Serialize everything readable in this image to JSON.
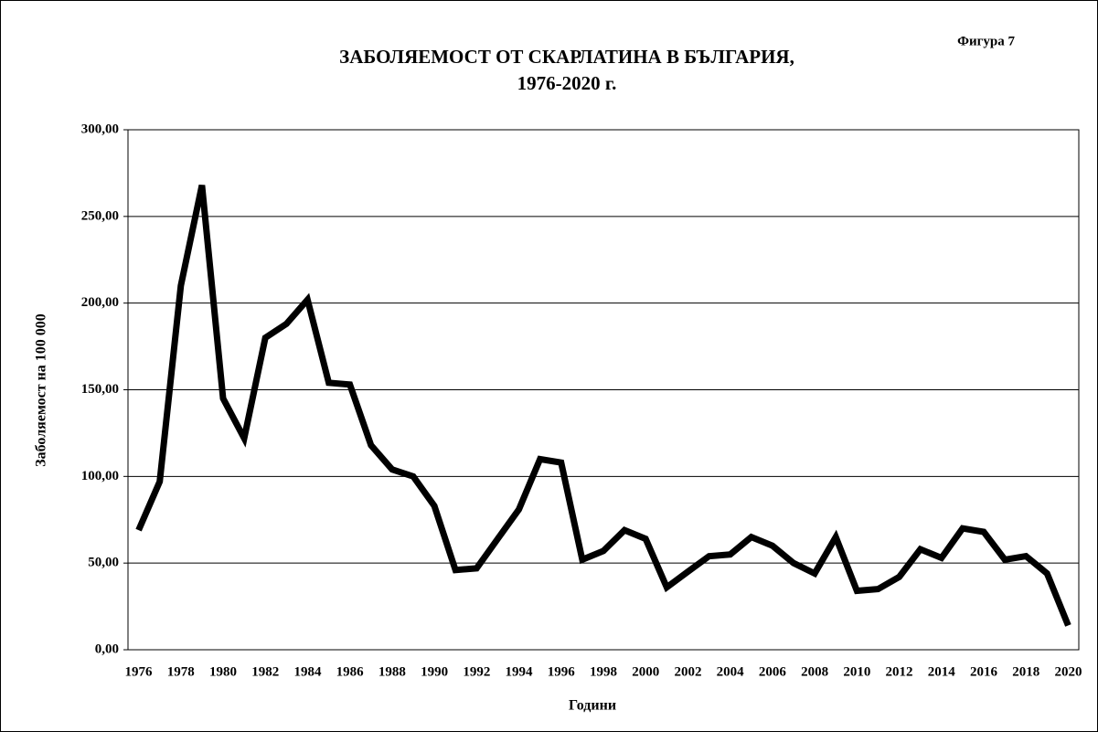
{
  "chart_data": {
    "type": "line",
    "title": [
      "ЗАБОЛЯЕМОСТ ОТ СКАРЛАТИНА В БЪЛГАРИЯ,",
      "1976-2020 г."
    ],
    "annotation": "Фигура 7",
    "x_label": "Години",
    "y_label": "Заболяемост на 100 000",
    "categories": [
      "1976",
      null,
      "1978",
      null,
      "1980",
      null,
      "1982",
      null,
      "1984",
      null,
      "1986",
      null,
      "1988",
      null,
      "1990",
      null,
      "1992",
      null,
      "1994",
      null,
      "1996",
      null,
      "1998",
      null,
      "2000",
      null,
      "2002",
      null,
      "2004",
      null,
      "2006",
      null,
      "2008",
      null,
      "2010",
      null,
      "2012",
      null,
      "2014",
      null,
      "2016",
      null,
      "2018",
      null,
      "2020"
    ],
    "values": [
      69,
      97,
      210,
      268,
      145,
      122,
      180,
      188,
      202,
      154,
      153,
      118,
      104,
      100,
      83,
      46,
      47,
      64,
      81,
      110,
      108,
      52,
      57,
      69,
      64,
      36,
      45,
      54,
      55,
      65,
      60,
      50,
      44,
      65,
      34,
      35,
      42,
      58,
      53,
      70,
      68,
      52,
      54,
      44,
      14
    ],
    "color": "#000000",
    "ylim": [
      0,
      300
    ],
    "yticks": [
      {
        "value": 0,
        "label": "0,00"
      },
      {
        "value": 50,
        "label": "50,00"
      },
      {
        "value": 100,
        "label": "100,00"
      },
      {
        "value": 150,
        "label": "150,00"
      },
      {
        "value": 200,
        "label": "200,00"
      },
      {
        "value": 250,
        "label": "250,00"
      },
      {
        "value": 300,
        "label": "300,00"
      }
    ],
    "grid": true
  }
}
